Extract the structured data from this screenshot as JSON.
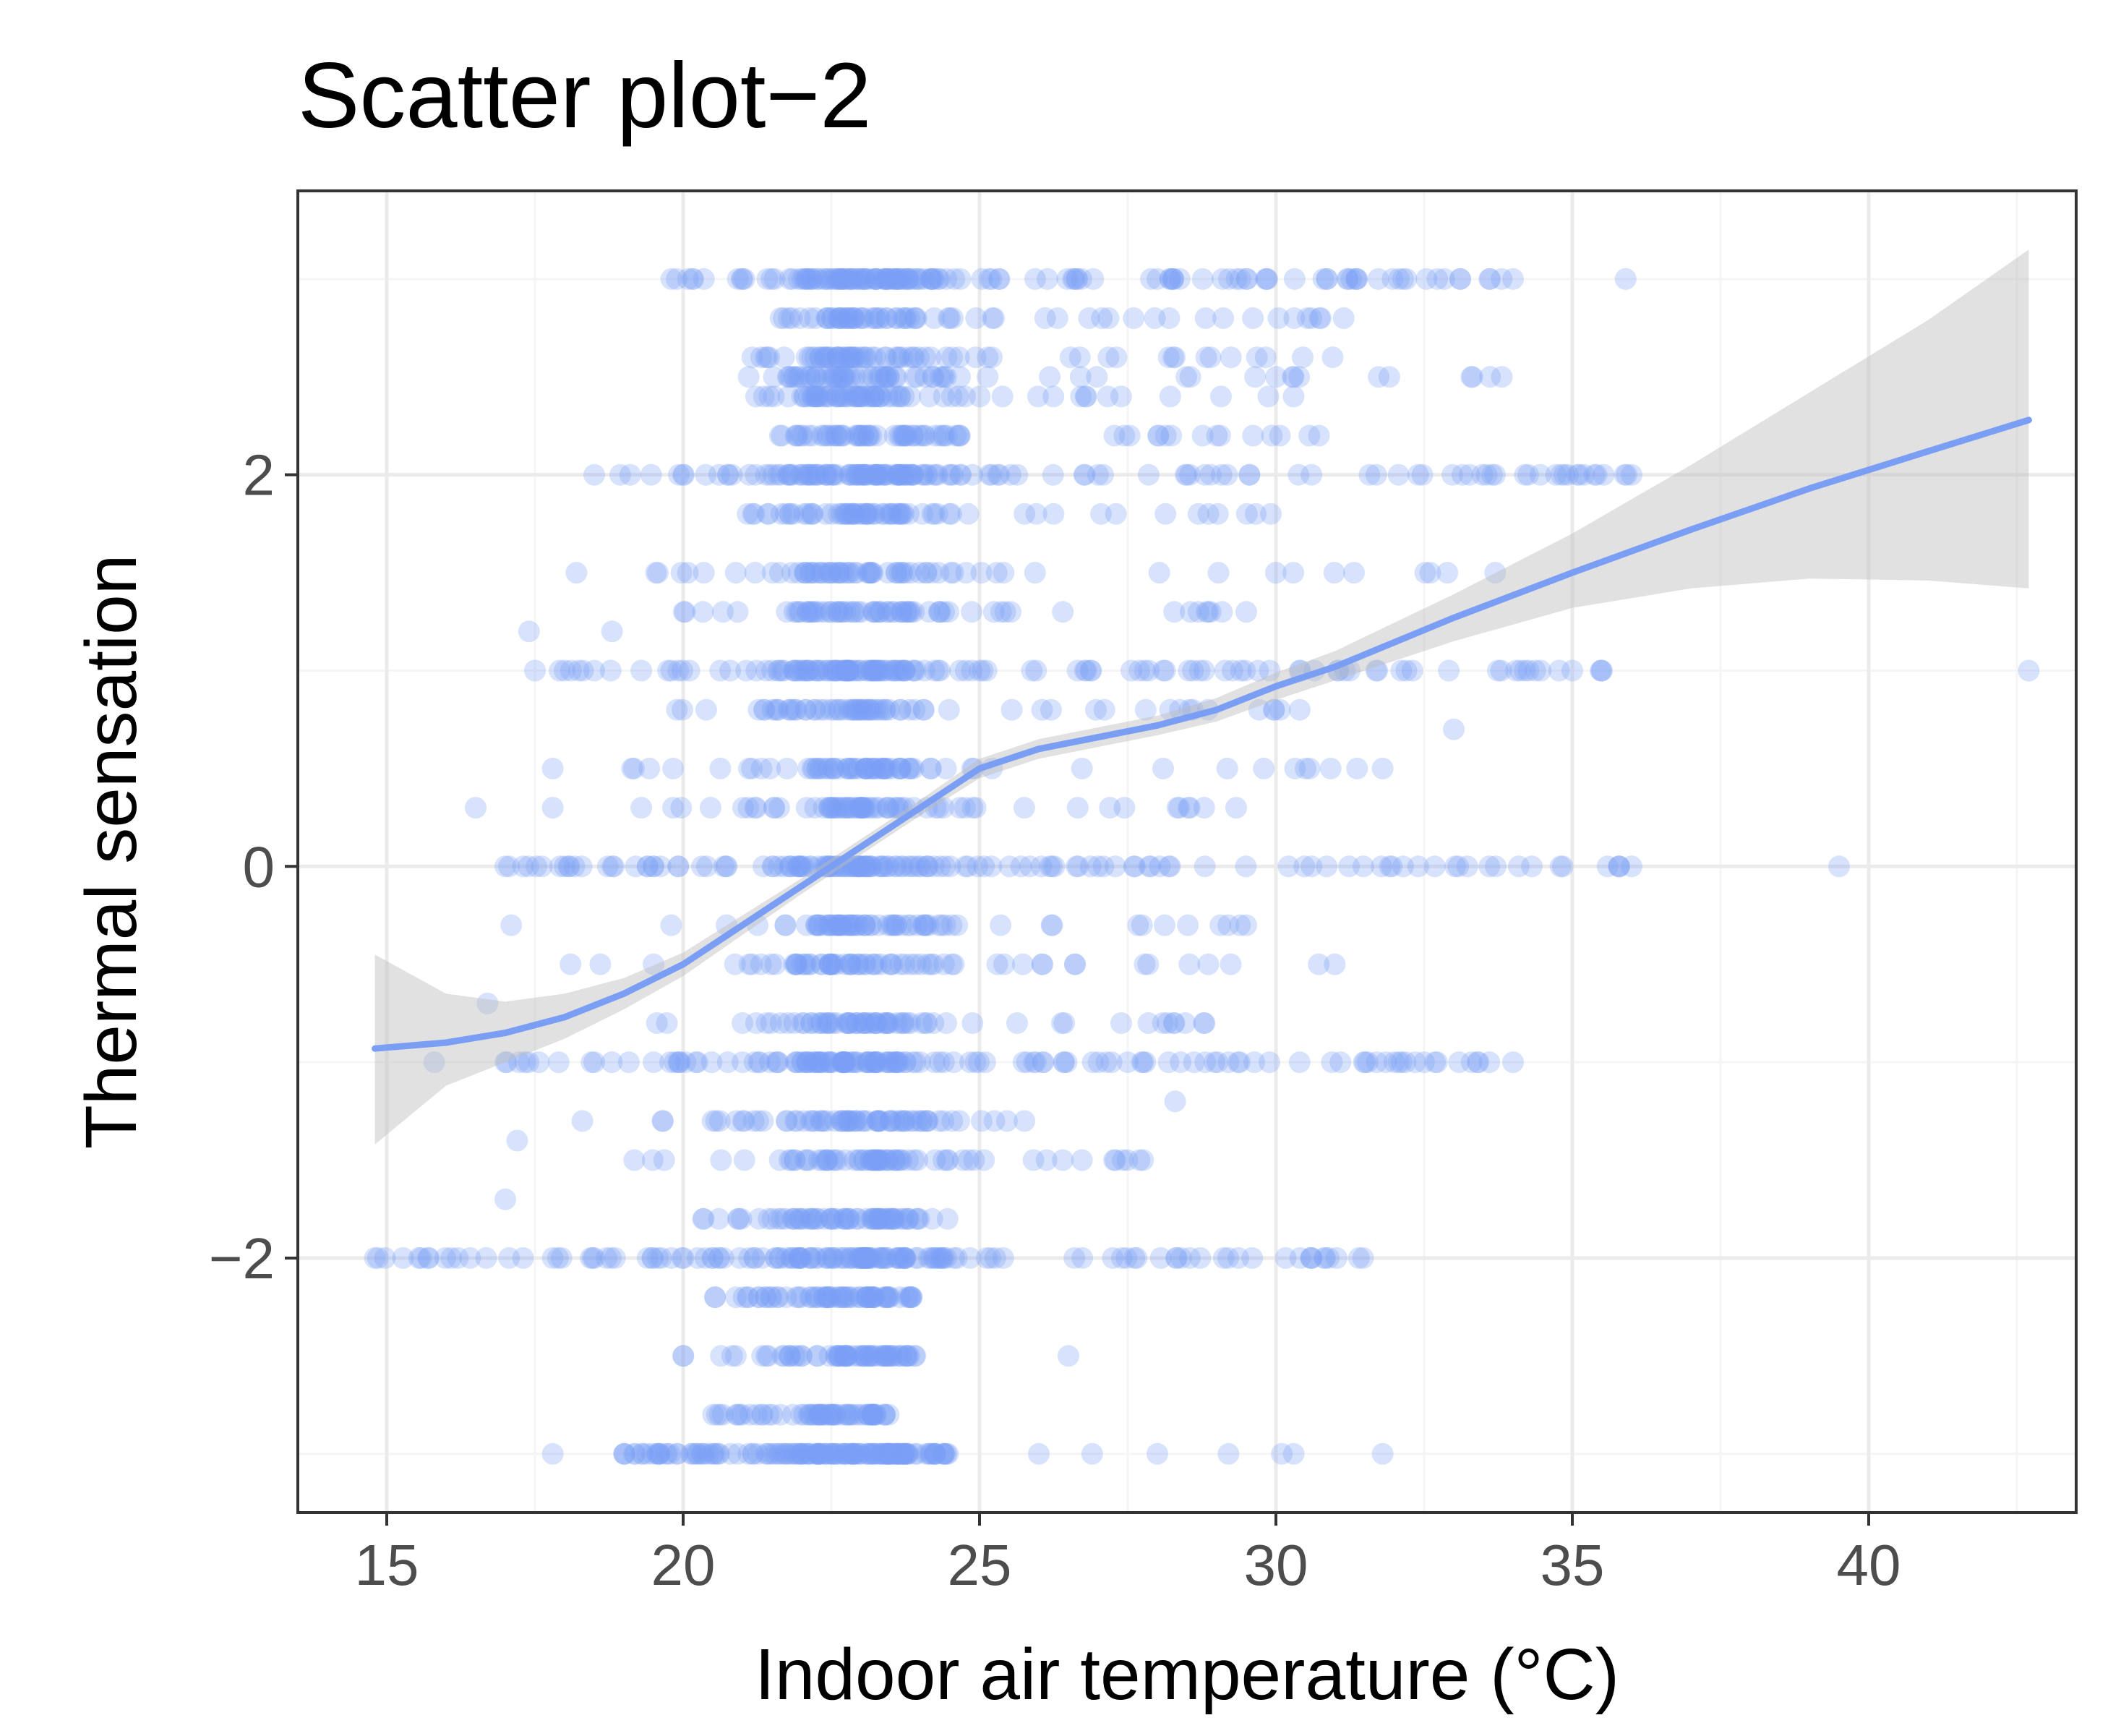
{
  "chart_data": {
    "type": "scatter",
    "title": "Scatter plot−2",
    "xlabel": "Indoor air temperature (°C)",
    "ylabel": "Thermal sensation",
    "xlim": [
      13.5,
      43.5
    ],
    "ylim": [
      -3.3,
      3.45
    ],
    "x_ticks": [
      15,
      20,
      25,
      30,
      35,
      40
    ],
    "x_tick_labels": [
      "15",
      "20",
      "25",
      "30",
      "35",
      "40"
    ],
    "y_ticks": [
      -2,
      0,
      2
    ],
    "y_tick_labels": [
      "−2",
      "0",
      "2"
    ],
    "grid": true,
    "legend": "none",
    "colors": {
      "points": "#7b9ef5",
      "smooth_line": "#7b9ef5",
      "confidence_band": "#bdbdbd",
      "panel_border": "#333333",
      "grid_major": "#ebebeb",
      "grid_minor": "#f5f5f5"
    },
    "point_alpha": 0.3,
    "density_rows": [
      {
        "y": 3.0,
        "min": 19.7,
        "max": 34.2
      },
      {
        "y": 2.8,
        "min": 21.5,
        "max": 31.5
      },
      {
        "y": 2.6,
        "min": 21.0,
        "max": 31.0
      },
      {
        "y": 2.5,
        "min": 20.8,
        "max": 34.0
      },
      {
        "y": 2.4,
        "min": 21.2,
        "max": 30.5
      },
      {
        "y": 2.2,
        "min": 21.0,
        "max": 31.0
      },
      {
        "y": 2.0,
        "min": 18.5,
        "max": 36.0
      },
      {
        "y": 1.8,
        "min": 20.5,
        "max": 30.5
      },
      {
        "y": 1.5,
        "min": 19.5,
        "max": 33.0
      },
      {
        "y": 1.3,
        "min": 20.0,
        "max": 30.0
      },
      {
        "y": 1.0,
        "min": 17.5,
        "max": 35.5
      },
      {
        "y": 0.8,
        "min": 19.5,
        "max": 30.5
      },
      {
        "y": 0.5,
        "min": 19.0,
        "max": 31.5
      },
      {
        "y": 0.3,
        "min": 19.0,
        "max": 29.5
      },
      {
        "y": 0.0,
        "min": 17.0,
        "max": 36.0
      },
      {
        "y": -0.3,
        "min": 19.5,
        "max": 29.5
      },
      {
        "y": -0.5,
        "min": 18.0,
        "max": 31.0
      },
      {
        "y": -0.8,
        "min": 19.5,
        "max": 29.0
      },
      {
        "y": -1.0,
        "min": 17.0,
        "max": 34.0
      },
      {
        "y": -1.3,
        "min": 19.5,
        "max": 26.0
      },
      {
        "y": -1.5,
        "min": 19.0,
        "max": 28.0
      },
      {
        "y": -1.8,
        "min": 20.0,
        "max": 24.5
      },
      {
        "y": -2.0,
        "min": 14.8,
        "max": 31.5
      },
      {
        "y": -2.2,
        "min": 20.5,
        "max": 24.0
      },
      {
        "y": -2.5,
        "min": 20.0,
        "max": 24.5
      },
      {
        "y": -2.8,
        "min": 20.5,
        "max": 23.5
      },
      {
        "y": -3.0,
        "min": 19.0,
        "max": 24.5
      }
    ],
    "points": [
      {
        "x": 17.8,
        "y": -3.0
      },
      {
        "x": 19.0,
        "y": -3.0
      },
      {
        "x": 19.3,
        "y": -3.0
      },
      {
        "x": 19.6,
        "y": -3.0
      },
      {
        "x": 19.9,
        "y": -3.0
      },
      {
        "x": 20.2,
        "y": -3.0
      },
      {
        "x": 20.5,
        "y": -3.0
      },
      {
        "x": 20.8,
        "y": -3.0
      },
      {
        "x": 21.1,
        "y": -3.0
      },
      {
        "x": 21.4,
        "y": -3.0
      },
      {
        "x": 21.7,
        "y": -3.0
      },
      {
        "x": 22.0,
        "y": -3.0
      },
      {
        "x": 22.3,
        "y": -3.0
      },
      {
        "x": 22.6,
        "y": -3.0
      },
      {
        "x": 22.9,
        "y": -3.0
      },
      {
        "x": 23.2,
        "y": -3.0
      },
      {
        "x": 23.5,
        "y": -3.0
      },
      {
        "x": 23.8,
        "y": -3.0
      },
      {
        "x": 24.1,
        "y": -3.0
      },
      {
        "x": 24.4,
        "y": -3.0
      },
      {
        "x": 26.0,
        "y": -3.0
      },
      {
        "x": 26.9,
        "y": -3.0
      },
      {
        "x": 28.0,
        "y": -3.0
      },
      {
        "x": 29.2,
        "y": -3.0
      },
      {
        "x": 30.1,
        "y": -3.0
      },
      {
        "x": 30.3,
        "y": -3.0
      },
      {
        "x": 31.8,
        "y": -3.0
      },
      {
        "x": 14.8,
        "y": -2.0
      },
      {
        "x": 15.7,
        "y": -2.0
      },
      {
        "x": 16.2,
        "y": -2.0
      },
      {
        "x": 17.3,
        "y": -2.0
      },
      {
        "x": 17.8,
        "y": -2.0
      },
      {
        "x": 18.5,
        "y": -2.0
      },
      {
        "x": 19.4,
        "y": -2.0
      },
      {
        "x": 19.8,
        "y": -2.0
      },
      {
        "x": 20.6,
        "y": -2.0
      },
      {
        "x": 21.2,
        "y": -2.0
      },
      {
        "x": 22.0,
        "y": -2.0
      },
      {
        "x": 22.8,
        "y": -2.0
      },
      {
        "x": 23.6,
        "y": -2.0
      },
      {
        "x": 24.4,
        "y": -2.0
      },
      {
        "x": 25.4,
        "y": -2.0
      },
      {
        "x": 26.6,
        "y": -2.0
      },
      {
        "x": 27.4,
        "y": -2.0
      },
      {
        "x": 28.4,
        "y": -2.0
      },
      {
        "x": 29.6,
        "y": -2.0
      },
      {
        "x": 30.6,
        "y": -2.0
      },
      {
        "x": 31.4,
        "y": -2.0
      },
      {
        "x": 15.8,
        "y": -1.0
      },
      {
        "x": 17.0,
        "y": -1.0
      },
      {
        "x": 17.9,
        "y": -1.0
      },
      {
        "x": 19.5,
        "y": -1.0
      },
      {
        "x": 21.0,
        "y": -1.0
      },
      {
        "x": 22.5,
        "y": -1.0
      },
      {
        "x": 24.0,
        "y": -1.0
      },
      {
        "x": 25.8,
        "y": -1.0
      },
      {
        "x": 27.5,
        "y": -1.0
      },
      {
        "x": 29.2,
        "y": -1.0
      },
      {
        "x": 30.4,
        "y": -1.0
      },
      {
        "x": 31.7,
        "y": -1.0
      },
      {
        "x": 32.5,
        "y": -1.0
      },
      {
        "x": 33.4,
        "y": -1.0
      },
      {
        "x": 34.0,
        "y": -1.0
      },
      {
        "x": 17.0,
        "y": 0.0
      },
      {
        "x": 17.3,
        "y": 0.0
      },
      {
        "x": 18.0,
        "y": 0.0
      },
      {
        "x": 19.2,
        "y": 0.0
      },
      {
        "x": 20.4,
        "y": 0.0
      },
      {
        "x": 22.0,
        "y": 0.0
      },
      {
        "x": 23.6,
        "y": 0.0
      },
      {
        "x": 25.2,
        "y": 0.0
      },
      {
        "x": 27.0,
        "y": 0.0
      },
      {
        "x": 28.8,
        "y": 0.0
      },
      {
        "x": 30.6,
        "y": 0.0
      },
      {
        "x": 32.4,
        "y": 0.0
      },
      {
        "x": 33.6,
        "y": 0.0
      },
      {
        "x": 34.8,
        "y": 0.0
      },
      {
        "x": 36.0,
        "y": 0.0
      },
      {
        "x": 39.5,
        "y": 0.0
      },
      {
        "x": 17.5,
        "y": 1.0
      },
      {
        "x": 18.5,
        "y": 1.0
      },
      {
        "x": 19.8,
        "y": 1.0
      },
      {
        "x": 21.5,
        "y": 1.0
      },
      {
        "x": 23.2,
        "y": 1.0
      },
      {
        "x": 25.0,
        "y": 1.0
      },
      {
        "x": 26.8,
        "y": 1.0
      },
      {
        "x": 28.6,
        "y": 1.0
      },
      {
        "x": 30.4,
        "y": 1.0
      },
      {
        "x": 32.2,
        "y": 1.0
      },
      {
        "x": 33.8,
        "y": 1.0
      },
      {
        "x": 35.0,
        "y": 1.0
      },
      {
        "x": 35.5,
        "y": 1.0
      },
      {
        "x": 42.7,
        "y": 1.0
      },
      {
        "x": 18.5,
        "y": 2.0
      },
      {
        "x": 20.0,
        "y": 2.0
      },
      {
        "x": 21.6,
        "y": 2.0
      },
      {
        "x": 23.4,
        "y": 2.0
      },
      {
        "x": 25.2,
        "y": 2.0
      },
      {
        "x": 27.0,
        "y": 2.0
      },
      {
        "x": 28.8,
        "y": 2.0
      },
      {
        "x": 30.6,
        "y": 2.0
      },
      {
        "x": 32.4,
        "y": 2.0
      },
      {
        "x": 34.2,
        "y": 2.0
      },
      {
        "x": 35.2,
        "y": 2.0
      },
      {
        "x": 36.0,
        "y": 2.0
      },
      {
        "x": 19.8,
        "y": 3.0
      },
      {
        "x": 21.0,
        "y": 3.0
      },
      {
        "x": 22.4,
        "y": 3.0
      },
      {
        "x": 23.8,
        "y": 3.0
      },
      {
        "x": 25.2,
        "y": 3.0
      },
      {
        "x": 26.6,
        "y": 3.0
      },
      {
        "x": 28.0,
        "y": 3.0
      },
      {
        "x": 29.4,
        "y": 3.0
      },
      {
        "x": 30.8,
        "y": 3.0
      },
      {
        "x": 32.2,
        "y": 3.0
      },
      {
        "x": 33.6,
        "y": 3.0
      },
      {
        "x": 34.0,
        "y": 3.0
      },
      {
        "x": 35.9,
        "y": 3.0
      },
      {
        "x": 16.5,
        "y": 0.3
      },
      {
        "x": 17.8,
        "y": 0.3
      },
      {
        "x": 16.7,
        "y": -0.7
      },
      {
        "x": 17.1,
        "y": -0.3
      },
      {
        "x": 17.8,
        "y": 0.5
      },
      {
        "x": 18.2,
        "y": 1.5
      },
      {
        "x": 17.4,
        "y": 1.2
      },
      {
        "x": 17.0,
        "y": -1.7
      },
      {
        "x": 17.2,
        "y": -1.4
      },
      {
        "x": 18.3,
        "y": -1.3
      },
      {
        "x": 18.8,
        "y": 1.2
      },
      {
        "x": 18.1,
        "y": -0.5
      },
      {
        "x": 33.0,
        "y": 0.7
      },
      {
        "x": 33.7,
        "y": 1.5
      },
      {
        "x": 28.3,
        "y": -1.2
      },
      {
        "x": 26.5,
        "y": -2.5
      },
      {
        "x": 27.7,
        "y": -1.5
      },
      {
        "x": 29.5,
        "y": 1.3
      },
      {
        "x": 30.5,
        "y": 0.5
      },
      {
        "x": 31.8,
        "y": 0.5
      }
    ],
    "smooth_line": {
      "x": [
        14.8,
        16.0,
        17.0,
        18.0,
        19.0,
        20.0,
        21.0,
        22.0,
        23.0,
        24.0,
        25.0,
        26.0,
        27.0,
        28.0,
        29.0,
        30.0,
        31.0,
        33.0,
        35.0,
        37.0,
        39.0,
        41.0,
        42.7
      ],
      "y": [
        -0.93,
        -0.9,
        -0.85,
        -0.77,
        -0.65,
        -0.5,
        -0.3,
        -0.1,
        0.1,
        0.3,
        0.5,
        0.6,
        0.66,
        0.72,
        0.8,
        0.92,
        1.02,
        1.27,
        1.5,
        1.72,
        1.93,
        2.12,
        2.28
      ]
    },
    "confidence_band": {
      "x": [
        14.8,
        16.0,
        17.0,
        18.0,
        19.0,
        20.0,
        21.0,
        22.0,
        23.0,
        24.0,
        25.0,
        26.0,
        27.0,
        28.0,
        29.0,
        30.0,
        31.0,
        33.0,
        35.0,
        37.0,
        39.0,
        41.0,
        42.7
      ],
      "ymin": [
        -1.42,
        -1.12,
        -1.0,
        -0.88,
        -0.73,
        -0.56,
        -0.35,
        -0.14,
        0.06,
        0.26,
        0.45,
        0.55,
        0.61,
        0.67,
        0.74,
        0.85,
        0.95,
        1.15,
        1.32,
        1.42,
        1.47,
        1.46,
        1.42
      ],
      "ymax": [
        -0.45,
        -0.65,
        -0.69,
        -0.65,
        -0.57,
        -0.44,
        -0.25,
        -0.06,
        0.14,
        0.34,
        0.55,
        0.65,
        0.71,
        0.77,
        0.86,
        0.99,
        1.1,
        1.39,
        1.7,
        2.05,
        2.42,
        2.79,
        3.15
      ]
    }
  }
}
